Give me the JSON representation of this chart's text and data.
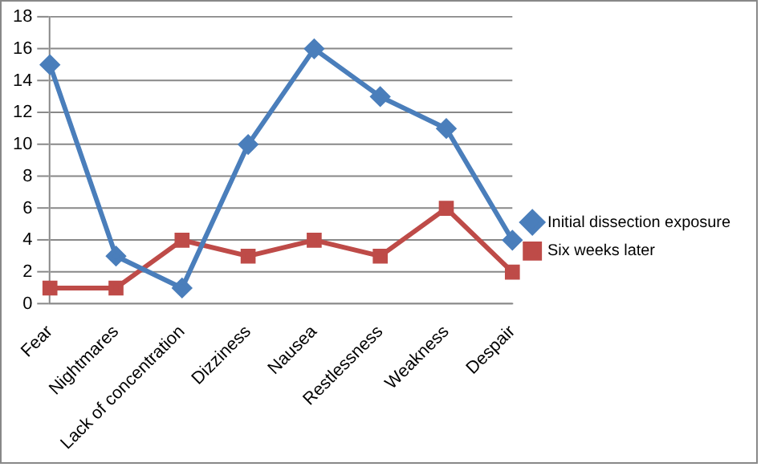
{
  "chart_data": {
    "type": "line",
    "categories": [
      "Fear",
      "Nightmares",
      "Lack of concentration",
      "Dizziness",
      "Nausea",
      "Restlessness",
      "Weakness",
      "Despair"
    ],
    "series": [
      {
        "name": "Initial dissection exposure",
        "color": "#4a7ebb",
        "marker": "diamond",
        "values": [
          15,
          3,
          1,
          10,
          16,
          13,
          11,
          4
        ]
      },
      {
        "name": "Six weeks later",
        "color": "#be4b48",
        "marker": "square",
        "values": [
          1,
          1,
          4,
          3,
          4,
          3,
          6,
          2
        ]
      }
    ],
    "ylim": [
      0,
      18
    ],
    "yticks": [
      0,
      2,
      4,
      6,
      8,
      10,
      12,
      14,
      16,
      18
    ],
    "grid": "y",
    "legend": "right"
  }
}
